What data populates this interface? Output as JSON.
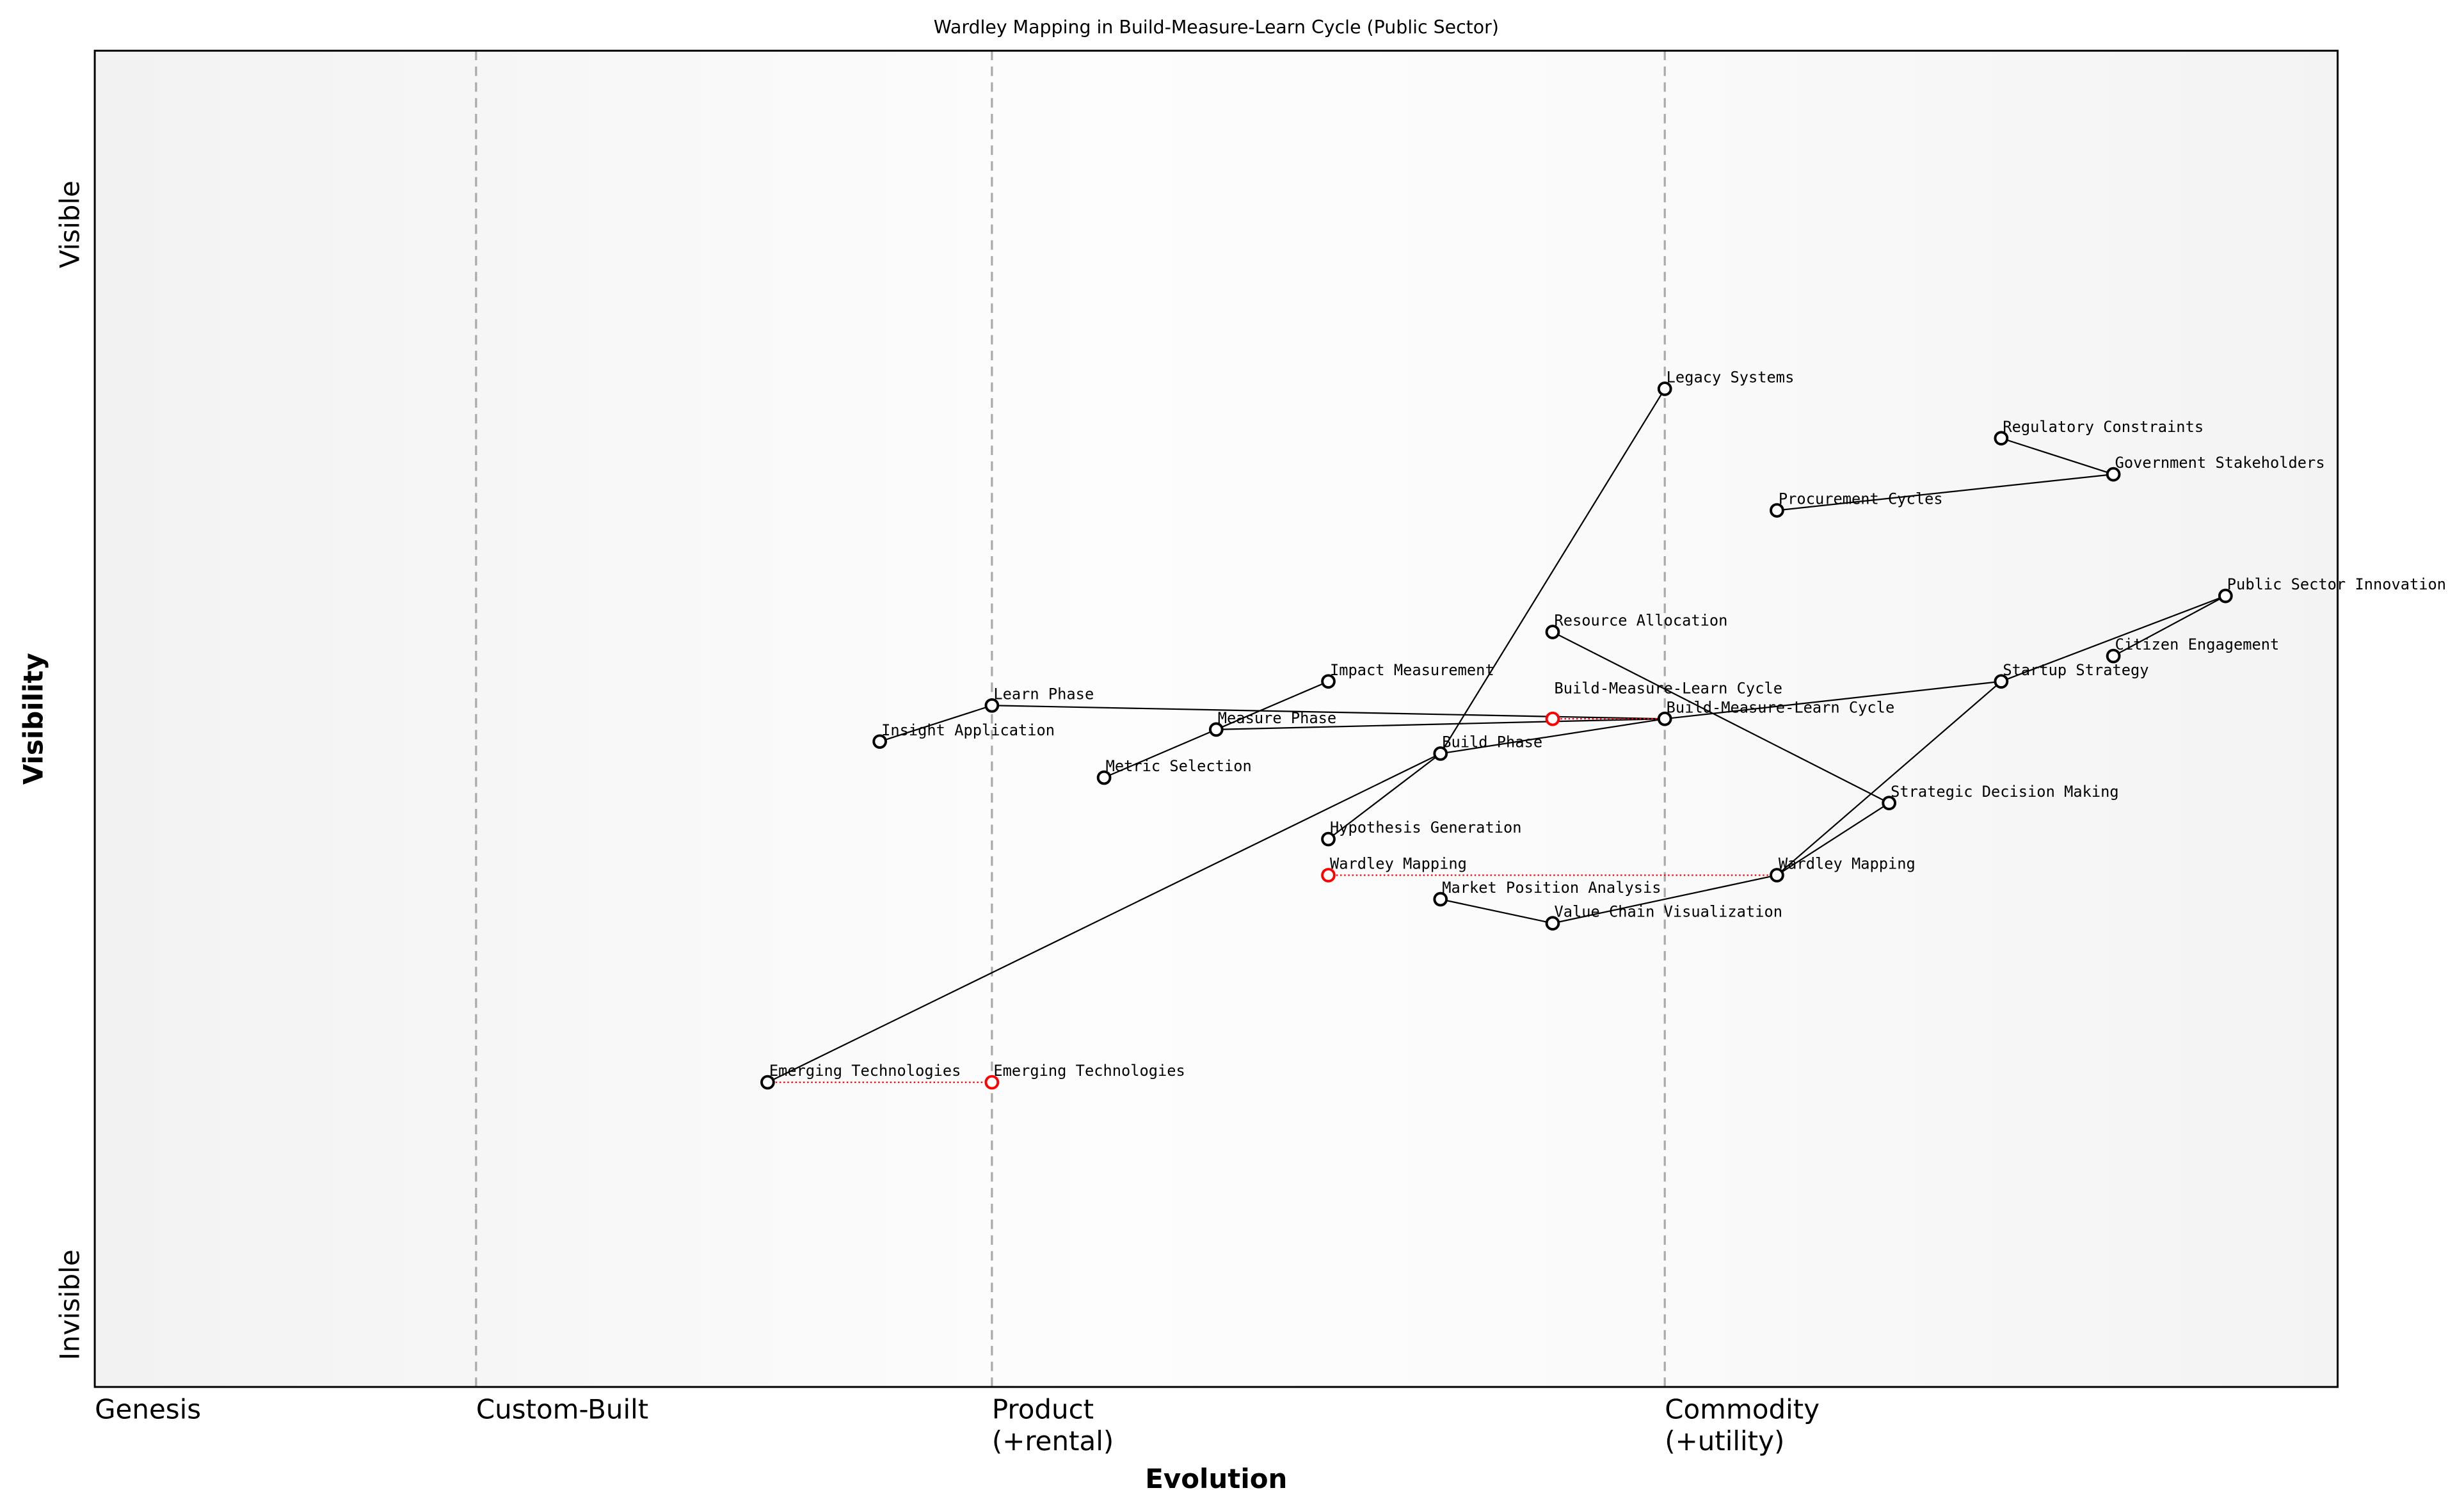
{
  "chart_data": {
    "type": "scatter",
    "title": "Wardley Mapping in Build-Measure-Learn Cycle (Public Sector)",
    "xlabel": "Evolution",
    "ylabel": "Visibility",
    "xlim": [
      0,
      1
    ],
    "ylim": [
      0,
      1
    ],
    "y_ticks": [
      {
        "label": "Visible",
        "value": 0.87
      },
      {
        "label": "Invisible",
        "value": 0.02
      }
    ],
    "stages": [
      {
        "label": "Genesis",
        "value": 0.0,
        "line": false
      },
      {
        "label": "Custom-Built",
        "value": 0.17,
        "line": true
      },
      {
        "label": "Product\n(+rental)",
        "value": 0.4,
        "line": true
      },
      {
        "label": "Commodity\n(+utility)",
        "value": 0.7,
        "line": true
      }
    ],
    "colors": {
      "node": "#000000",
      "evolved_node": "#ff0000",
      "grid": "#aaaaaa"
    },
    "nodes": [
      {
        "id": "legacy",
        "name": "Legacy Systems",
        "x": 0.7,
        "y": 0.747
      },
      {
        "id": "regulatory",
        "name": "Regulatory Constraints",
        "x": 0.85,
        "y": 0.71
      },
      {
        "id": "gov",
        "name": "Government Stakeholders",
        "x": 0.9,
        "y": 0.683
      },
      {
        "id": "procurement",
        "name": "Procurement Cycles",
        "x": 0.75,
        "y": 0.656
      },
      {
        "id": "psi",
        "name": "Public Sector Innovation",
        "x": 0.95,
        "y": 0.592
      },
      {
        "id": "resource",
        "name": "Resource Allocation",
        "x": 0.65,
        "y": 0.565
      },
      {
        "id": "citizen",
        "name": "Citizen Engagement",
        "x": 0.9,
        "y": 0.547
      },
      {
        "id": "startup",
        "name": "Startup Strategy",
        "x": 0.85,
        "y": 0.528
      },
      {
        "id": "impact",
        "name": "Impact Measurement",
        "x": 0.55,
        "y": 0.528
      },
      {
        "id": "learn",
        "name": "Learn Phase",
        "x": 0.4,
        "y": 0.51
      },
      {
        "id": "bml_evo",
        "name": "Build-Measure-Learn Cycle",
        "x": 0.65,
        "y": 0.5,
        "evolved": true
      },
      {
        "id": "bml",
        "name": "Build-Measure-Learn Cycle",
        "x": 0.7,
        "y": 0.5
      },
      {
        "id": "measure",
        "name": "Measure Phase",
        "x": 0.5,
        "y": 0.492
      },
      {
        "id": "insight",
        "name": "Insight Application",
        "x": 0.35,
        "y": 0.483
      },
      {
        "id": "build",
        "name": "Build Phase",
        "x": 0.6,
        "y": 0.474
      },
      {
        "id": "metric",
        "name": "Metric Selection",
        "x": 0.45,
        "y": 0.456
      },
      {
        "id": "strategic",
        "name": "Strategic Decision Making",
        "x": 0.8,
        "y": 0.437
      },
      {
        "id": "hypothesis",
        "name": "Hypothesis Generation",
        "x": 0.55,
        "y": 0.41
      },
      {
        "id": "wardley_evo",
        "name": "Wardley Mapping",
        "x": 0.55,
        "y": 0.383,
        "evolved": true
      },
      {
        "id": "wardley",
        "name": "Wardley Mapping",
        "x": 0.75,
        "y": 0.383
      },
      {
        "id": "market",
        "name": "Market Position Analysis",
        "x": 0.6,
        "y": 0.365
      },
      {
        "id": "valuechain",
        "name": "Value Chain Visualization",
        "x": 0.65,
        "y": 0.347
      },
      {
        "id": "emerging",
        "name": "Emerging Technologies",
        "x": 0.3,
        "y": 0.228
      },
      {
        "id": "emerging_evo",
        "name": "Emerging Technologies",
        "x": 0.4,
        "y": 0.228,
        "evolved": true
      }
    ],
    "links": [
      [
        "regulatory",
        "gov"
      ],
      [
        "gov",
        "procurement"
      ],
      [
        "psi",
        "startup"
      ],
      [
        "psi",
        "citizen"
      ],
      [
        "startup",
        "bml"
      ],
      [
        "startup",
        "wardley"
      ],
      [
        "resource",
        "strategic"
      ],
      [
        "strategic",
        "wardley"
      ],
      [
        "wardley",
        "valuechain"
      ],
      [
        "valuechain",
        "market"
      ],
      [
        "bml",
        "learn"
      ],
      [
        "bml",
        "measure"
      ],
      [
        "bml",
        "build"
      ],
      [
        "learn",
        "insight"
      ],
      [
        "measure",
        "impact"
      ],
      [
        "measure",
        "metric"
      ],
      [
        "legacy",
        "build"
      ],
      [
        "build",
        "hypothesis"
      ],
      [
        "build",
        "emerging"
      ]
    ],
    "evolutions": [
      [
        "bml_evo",
        "bml"
      ],
      [
        "wardley_evo",
        "wardley"
      ],
      [
        "emerging",
        "emerging_evo"
      ]
    ]
  }
}
